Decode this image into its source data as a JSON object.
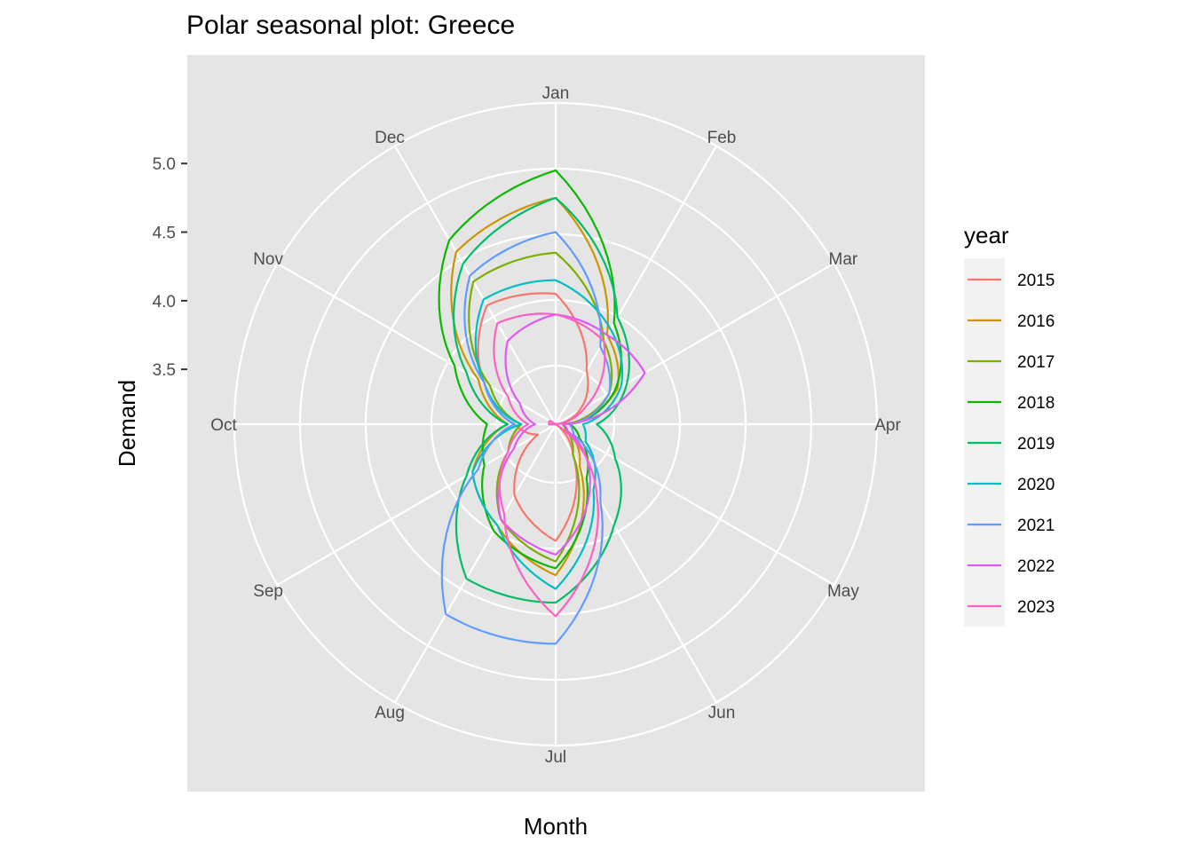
{
  "chart_data": {
    "type": "line",
    "coordinate_system": "polar",
    "title": "Polar seasonal plot: Greece",
    "xlabel": "Month",
    "ylabel": "Demand",
    "x": [
      "Jan",
      "Feb",
      "Mar",
      "Apr",
      "May",
      "Jun",
      "Jul",
      "Aug",
      "Sep",
      "Oct",
      "Nov",
      "Dec"
    ],
    "yticks": [
      "3.5",
      "4.0",
      "4.5",
      "5.0"
    ],
    "legend_title": "year",
    "legend_position": "right",
    "grid": true,
    "colors": {
      "panel_bg": "#e5e5e5",
      "grid": "#ffffff",
      "tick_text": "#4d4d4d"
    },
    "series": [
      {
        "name": "2015",
        "color": "#F8766D",
        "values": [
          4.05,
          3.55,
          3.3,
          3.05,
          3.05,
          3.35,
          3.95,
          3.7,
          3.25,
          3.4,
          3.7,
          4.1
        ]
      },
      {
        "name": "2016",
        "color": "#CD9600",
        "values": [
          4.75,
          3.85,
          3.62,
          3.15,
          3.2,
          3.45,
          4.2,
          3.95,
          3.8,
          3.45,
          3.75,
          4.55
        ]
      },
      {
        "name": "2017",
        "color": "#7CAE00",
        "values": [
          4.35,
          3.8,
          3.55,
          3.15,
          3.18,
          3.35,
          4.1,
          3.9,
          3.5,
          3.35,
          3.65,
          4.3
        ]
      },
      {
        "name": "2018",
        "color": "#0CB702",
        "values": [
          4.95,
          3.95,
          3.6,
          3.2,
          3.3,
          3.55,
          4.15,
          4.0,
          3.7,
          3.6,
          3.95,
          4.65
        ]
      },
      {
        "name": "2019",
        "color": "#00BE67",
        "values": [
          4.75,
          4.0,
          3.7,
          3.4,
          3.6,
          3.95,
          4.4,
          4.4,
          3.85,
          3.45,
          3.85,
          4.45
        ]
      },
      {
        "name": "2020",
        "color": "#00BFC4",
        "values": [
          4.15,
          3.9,
          3.65,
          3.3,
          3.35,
          3.65,
          4.3,
          3.95,
          3.8,
          3.35,
          3.7,
          4.15
        ]
      },
      {
        "name": "2021",
        "color": "#619CFF",
        "values": [
          4.5,
          3.75,
          3.55,
          3.2,
          3.25,
          3.75,
          4.7,
          4.7,
          3.75,
          3.4,
          3.7,
          4.35
        ]
      },
      {
        "name": "2022",
        "color": "#DF5AF5",
        "values": [
          3.9,
          3.85,
          3.85,
          3.15,
          3.2,
          3.6,
          4.05,
          3.9,
          3.45,
          3.25,
          3.4,
          3.8
        ]
      },
      {
        "name": "2023",
        "color": "#FF61C3",
        "values": [
          3.9,
          3.8,
          3.35,
          3.05,
          3.05,
          3.7,
          4.5,
          3.85,
          3.5,
          3.3,
          3.5,
          3.95
        ]
      }
    ]
  }
}
